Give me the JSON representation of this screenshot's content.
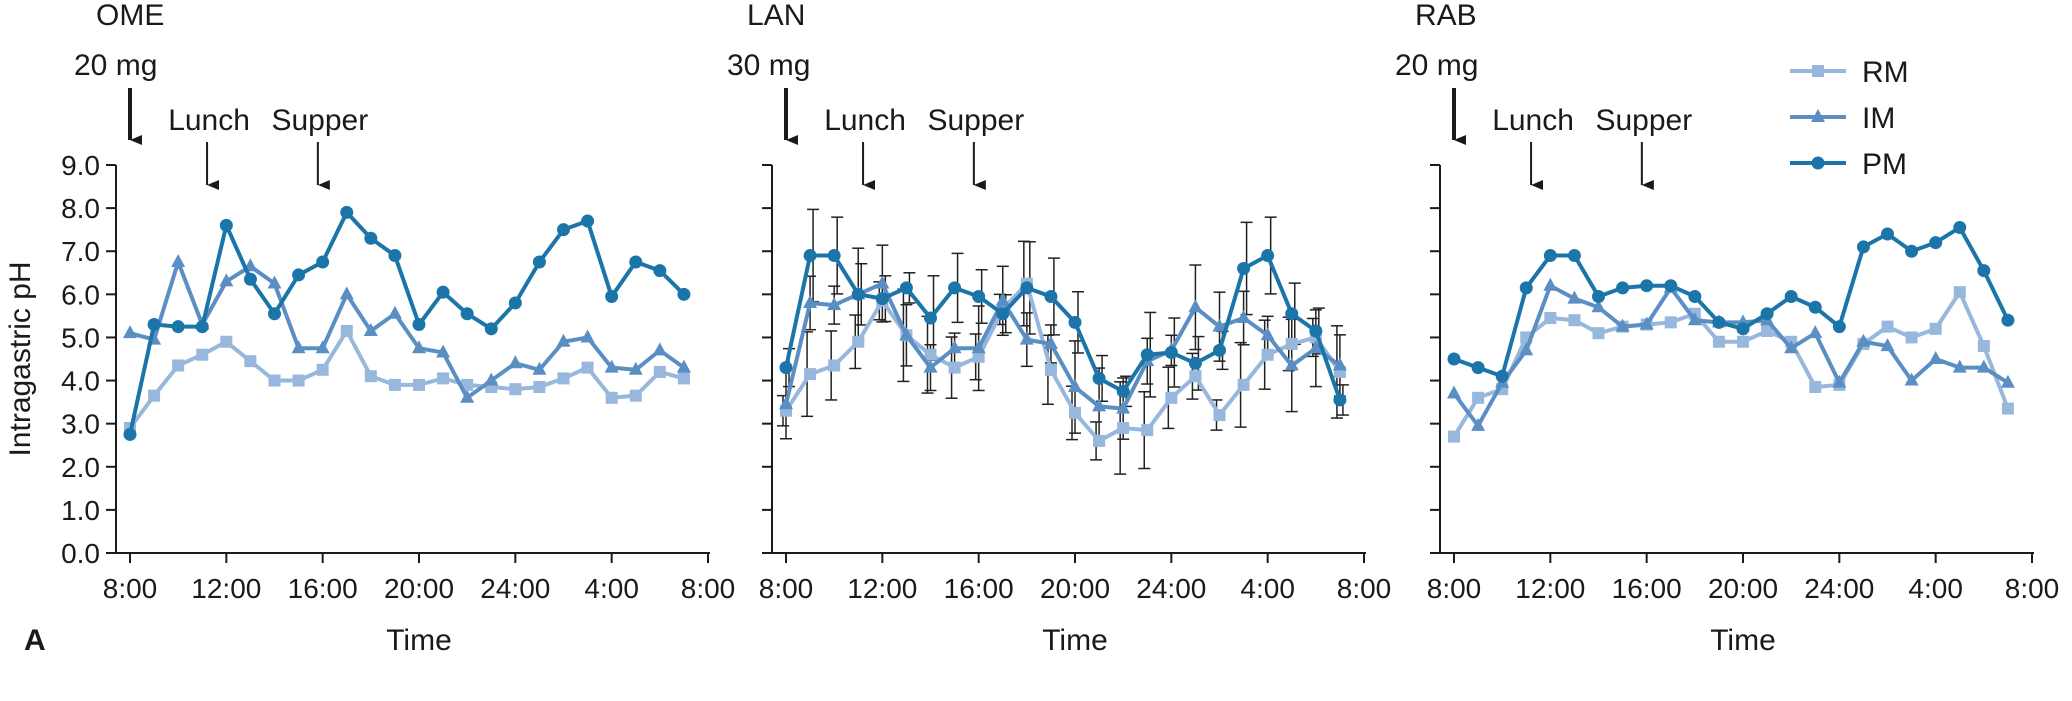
{
  "figure": {
    "panel_label": "A",
    "xlabel": "Time",
    "ylabel": "Intragastric pH",
    "yticks": [
      "0.0",
      "1.0",
      "2.0",
      "3.0",
      "4.0",
      "5.0",
      "6.0",
      "7.0",
      "8.0",
      "9.0"
    ],
    "xticks": [
      "8:00",
      "12:00",
      "16:00",
      "20:00",
      "24:00",
      "4:00",
      "8:00"
    ],
    "meal_labels": {
      "lunch": "Lunch",
      "supper": "Supper"
    },
    "colors": {
      "RM": "#97b7dc",
      "IM": "#5b8fc4",
      "PM": "#1b75a8",
      "axis": "#1a1a1a"
    },
    "legend": [
      "RM",
      "IM",
      "PM"
    ],
    "legend_position": "top-right"
  },
  "chart_data": [
    {
      "type": "line",
      "panel": "OME",
      "dose": "20 mg",
      "ylim": [
        0,
        9
      ],
      "x_hours": [
        0,
        1,
        2,
        3,
        4,
        5,
        6,
        7,
        8,
        9,
        10,
        11,
        12,
        13,
        14,
        15,
        16,
        17,
        18,
        19,
        20,
        21,
        22,
        23
      ],
      "series": [
        {
          "name": "RM",
          "marker": "square",
          "values": [
            2.9,
            3.65,
            4.35,
            4.6,
            4.9,
            4.45,
            4.0,
            4.0,
            4.25,
            5.15,
            4.1,
            3.9,
            3.9,
            4.05,
            3.9,
            3.85,
            3.8,
            3.85,
            4.05,
            4.3,
            3.6,
            3.65,
            4.2,
            4.05
          ]
        },
        {
          "name": "IM",
          "marker": "triangle",
          "values": [
            5.1,
            4.95,
            6.75,
            5.3,
            6.3,
            6.65,
            6.25,
            4.75,
            4.75,
            6.0,
            5.15,
            5.55,
            4.75,
            4.65,
            3.6,
            4.0,
            4.4,
            4.25,
            4.9,
            5.0,
            4.3,
            4.25,
            4.7,
            4.3
          ]
        },
        {
          "name": "PM",
          "marker": "circle",
          "values": [
            2.75,
            5.3,
            5.25,
            5.25,
            7.6,
            6.35,
            5.55,
            6.45,
            6.75,
            7.9,
            7.3,
            6.9,
            5.3,
            6.05,
            5.55,
            5.2,
            5.8,
            6.75,
            7.5,
            7.7,
            5.95,
            6.75,
            6.55,
            6.0
          ]
        }
      ]
    },
    {
      "type": "line",
      "panel": "LAN",
      "dose": "30 mg",
      "ylim": [
        0,
        9
      ],
      "error_bars": true,
      "x_hours": [
        0,
        1,
        2,
        3,
        4,
        5,
        6,
        7,
        8,
        9,
        10,
        11,
        12,
        13,
        14,
        15,
        16,
        17,
        18,
        19,
        20,
        21,
        22,
        23
      ],
      "series": [
        {
          "name": "RM",
          "marker": "square",
          "values": [
            3.3,
            4.15,
            4.35,
            4.9,
            5.85,
            5.05,
            4.6,
            4.3,
            4.55,
            5.65,
            6.25,
            4.25,
            3.25,
            2.6,
            2.9,
            2.85,
            3.6,
            4.1,
            3.2,
            3.9,
            4.6,
            4.85,
            5.0,
            4.2
          ]
        },
        {
          "name": "IM",
          "marker": "triangle",
          "values": [
            3.45,
            5.8,
            5.75,
            6.0,
            6.25,
            5.05,
            4.3,
            4.75,
            4.75,
            5.85,
            4.95,
            4.85,
            3.85,
            3.4,
            3.35,
            4.45,
            4.7,
            5.7,
            5.25,
            5.45,
            5.05,
            4.35,
            4.75,
            4.35
          ]
        },
        {
          "name": "PM",
          "marker": "circle",
          "values": [
            4.3,
            6.9,
            6.9,
            6.0,
            5.9,
            6.15,
            5.45,
            6.15,
            5.95,
            5.55,
            6.15,
            5.95,
            5.35,
            4.05,
            3.75,
            4.6,
            4.65,
            4.4,
            4.7,
            6.6,
            6.9,
            5.55,
            5.15,
            3.55
          ]
        }
      ]
    },
    {
      "type": "line",
      "panel": "RAB",
      "dose": "20 mg",
      "ylim": [
        0,
        9
      ],
      "x_hours": [
        0,
        1,
        2,
        3,
        4,
        5,
        6,
        7,
        8,
        9,
        10,
        11,
        12,
        13,
        14,
        15,
        16,
        17,
        18,
        19,
        20,
        21,
        22,
        23
      ],
      "series": [
        {
          "name": "RM",
          "marker": "square",
          "values": [
            2.7,
            3.6,
            3.8,
            5.0,
            5.45,
            5.4,
            5.1,
            5.25,
            5.3,
            5.35,
            5.55,
            4.9,
            4.9,
            5.15,
            4.9,
            3.85,
            3.9,
            4.85,
            5.25,
            5.0,
            5.2,
            6.05,
            4.8,
            3.35
          ]
        },
        {
          "name": "IM",
          "marker": "triangle",
          "values": [
            3.7,
            2.95,
            3.95,
            4.7,
            6.2,
            5.9,
            5.7,
            5.25,
            5.3,
            6.15,
            5.4,
            5.35,
            5.35,
            5.4,
            4.75,
            5.1,
            3.95,
            4.9,
            4.8,
            4.0,
            4.5,
            4.3,
            4.3,
            3.95
          ]
        },
        {
          "name": "PM",
          "marker": "circle",
          "values": [
            4.5,
            4.3,
            4.1,
            6.15,
            6.9,
            6.9,
            5.95,
            6.15,
            6.2,
            6.2,
            5.95,
            5.35,
            5.2,
            5.55,
            5.95,
            5.7,
            5.25,
            7.1,
            7.4,
            7.0,
            7.2,
            7.55,
            6.55,
            5.4
          ]
        }
      ]
    }
  ]
}
